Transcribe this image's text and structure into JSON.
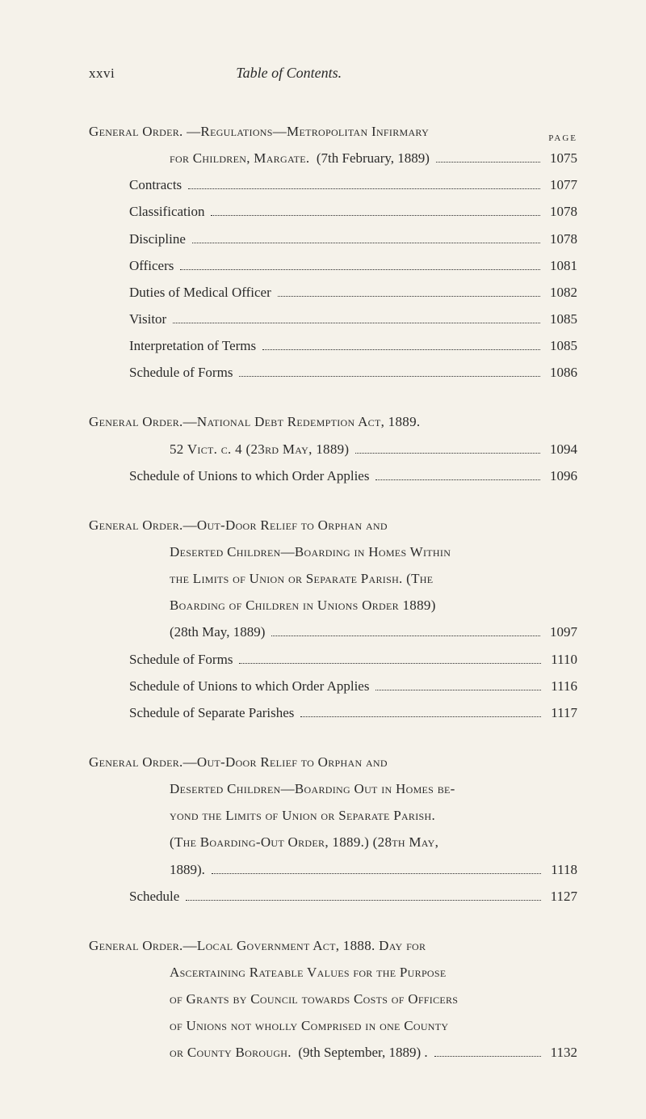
{
  "header": {
    "pageNumber": "xxvi",
    "title": "Table of Contents.",
    "pageLabel": "PAGE"
  },
  "sections": [
    {
      "heading": {
        "line1Prefix": "General Order. —Regulations—Metropolitan Infirmary",
        "line2": "for Children, Margate.",
        "line2suffix": "  (7th February, 1889)",
        "page": "1075"
      },
      "entries": [
        {
          "text": "Contracts",
          "page": "1077"
        },
        {
          "text": "Classification",
          "page": "1078"
        },
        {
          "text": "Discipline",
          "page": "1078"
        },
        {
          "text": "Officers",
          "page": "1081"
        },
        {
          "text": "Duties of Medical Officer",
          "page": "1082"
        },
        {
          "text": "Visitor",
          "page": "1085"
        },
        {
          "text": "Interpretation of Terms",
          "page": "1085"
        },
        {
          "text": "Schedule of Forms",
          "page": "1086"
        }
      ]
    },
    {
      "heading": {
        "line1": "General Order.—National Debt Redemption Act, 1889.",
        "line2": "52 Vict. c. 4 (23rd May, 1889)",
        "page": "1094"
      },
      "entries": [
        {
          "text": "Schedule of Unions to which Order Applies",
          "page": "1096"
        }
      ]
    },
    {
      "heading": {
        "line1": "General Order.—Out-Door Relief to Orphan and",
        "line2": "Deserted Children—Boarding in Homes Within",
        "line3": "the Limits of Union or Separate Parish.  (The",
        "line4": "Boarding of Children in Unions Order 1889)",
        "line5": "(28th May, 1889)",
        "page": "1097"
      },
      "entries": [
        {
          "text": "Schedule of Forms",
          "page": "1110"
        },
        {
          "text": "Schedule of Unions to which Order Applies",
          "page": "1116"
        },
        {
          "text": "Schedule of Separate Parishes",
          "page": "1117"
        }
      ]
    },
    {
      "heading": {
        "line1": "General Order.—Out-Door Relief to Orphan and",
        "line2": "Deserted Children—Boarding Out in Homes be-",
        "line3": "yond the Limits of Union or Separate Parish.",
        "line4": "(The Boarding-Out Order, 1889.)  (28th May,",
        "line5": "1889).",
        "page": "1118"
      },
      "entries": [
        {
          "text": "Schedule",
          "page": "1127"
        }
      ]
    },
    {
      "heading": {
        "line1": "General Order.—Local Government Act, 1888.  Day for",
        "line2": "Ascertaining Rateable Values for the Purpose",
        "line3": "of Grants by Council towards Costs of Officers",
        "line4": "of Unions not wholly Comprised in one County",
        "line5": "or County Borough.",
        "line5suffix": "  (9th September, 1889) .",
        "page": "1132"
      },
      "entries": []
    }
  ]
}
